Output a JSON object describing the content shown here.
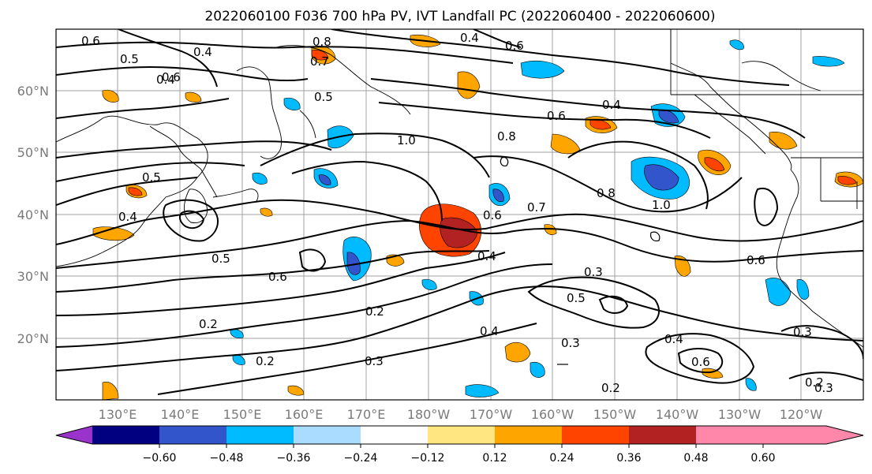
{
  "title": "2022060100 F036 700 hPa PV, IVT Landfall PC (2022060400 - 2022060600)",
  "lat_labels": [
    "60°N",
    "50°N",
    "40°N",
    "30°N",
    "20°N"
  ],
  "lon_labels": [
    "130°E",
    "140°E",
    "150°E",
    "160°E",
    "170°E",
    "180°W",
    "170°W",
    "160°W",
    "150°W",
    "140°W",
    "130°W",
    "120°W"
  ],
  "colorbar": {
    "ticks": [
      "−0.60",
      "−0.48",
      "−0.36",
      "−0.24",
      "−0.12",
      "0.12",
      "0.24",
      "0.36",
      "0.48",
      "0.60"
    ],
    "colors": [
      "#9933cc",
      "#000080",
      "#3355cc",
      "#00bbff",
      "#aadcff",
      "#ffffff",
      "#ffe680",
      "#ffa500",
      "#ff4400",
      "#b22222",
      "#ff88aa"
    ]
  },
  "contour_labels": [
    "0.6",
    "0.4",
    "0.8",
    "0.7",
    "0.4",
    "0.6",
    "0.4",
    "0.4",
    "0.6",
    "1.0",
    "0.8",
    "0.5",
    "0.4",
    "0.5",
    "0.6",
    "0.7",
    "0.6",
    "0.4",
    "0.5",
    "0.6",
    "0.2",
    "0.2",
    "0.2",
    "0.3",
    "0.4",
    "0.3",
    "0.5",
    "0.8",
    "1.0",
    "0.3",
    "0.4",
    "0.6",
    "0.2",
    "0.3",
    "0.2",
    "0.3",
    "0.5",
    "0.6"
  ]
}
